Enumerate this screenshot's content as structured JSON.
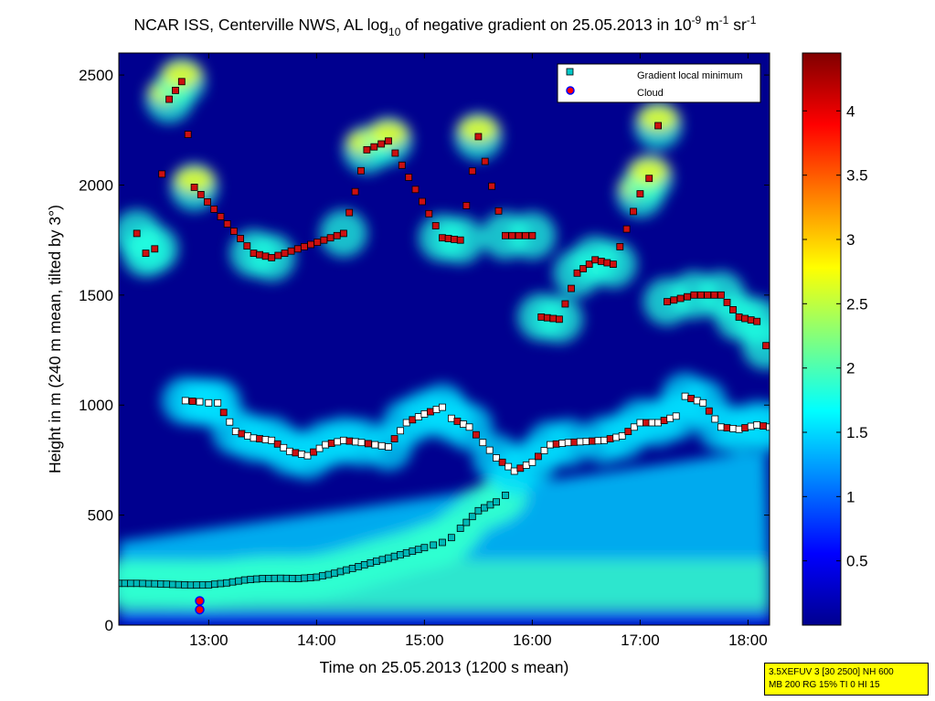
{
  "chart_data": {
    "type": "heatmap",
    "title_parts": [
      "NCAR ISS, Centerville NWS, AL log",
      "10",
      " of negative gradient on 25.05.2013 in 10",
      "-9",
      " m",
      "-1",
      " sr",
      "-1"
    ],
    "xlabel": "Time on 25.05.2013 (1200 s mean)",
    "ylabel": "Height in m (240 m mean, tilted by 3°)",
    "xlim": [
      "12:10",
      "18:12"
    ],
    "ylim": [
      0,
      2600
    ],
    "x_ticks": [
      "13:00",
      "14:00",
      "15:00",
      "16:00",
      "17:00",
      "18:00"
    ],
    "y_ticks": [
      0,
      500,
      1000,
      1500,
      2000,
      2500
    ],
    "colorbar": {
      "range": [
        0,
        4.45
      ],
      "ticks": [
        0.5,
        1,
        1.5,
        2,
        2.5,
        3,
        3.5,
        4
      ],
      "colormap": "jet"
    },
    "legend": {
      "placement": "top-right",
      "entries": [
        {
          "label": "Gradient local minimum",
          "marker": "square",
          "color": "#00c8c8"
        },
        {
          "label": "Cloud",
          "marker": "circle",
          "color": "#ff0000",
          "edge": "#0000ff"
        }
      ]
    },
    "colors": {
      "background_low": "#00008f",
      "gradient_marker_edge": "#000000",
      "cloud_marker_fill": "#cc1010"
    },
    "series": [
      {
        "name": "Gradient local minimum",
        "layer": "boundary",
        "points": [
          [
            "12:10",
            190
          ],
          [
            "12:20",
            190
          ],
          [
            "12:30",
            188
          ],
          [
            "12:40",
            185
          ],
          [
            "12:50",
            182
          ],
          [
            "13:00",
            183
          ],
          [
            "13:10",
            192
          ],
          [
            "13:20",
            205
          ],
          [
            "13:30",
            212
          ],
          [
            "13:40",
            213
          ],
          [
            "13:50",
            212
          ],
          [
            "14:00",
            218
          ],
          [
            "14:10",
            236
          ],
          [
            "14:20",
            258
          ],
          [
            "14:30",
            283
          ],
          [
            "14:40",
            305
          ],
          [
            "14:50",
            328
          ],
          [
            "15:00",
            352
          ],
          [
            "15:05",
            364
          ],
          [
            "15:10",
            376
          ],
          [
            "15:15",
            398
          ],
          [
            "15:20",
            440
          ],
          [
            "15:30",
            520
          ],
          [
            "15:40",
            560
          ],
          [
            "15:45",
            590
          ]
        ]
      },
      {
        "name": "Gradient local minimum",
        "layer": "layer-1000",
        "points": [
          [
            "12:47",
            1020
          ],
          [
            "12:55",
            1015
          ],
          [
            "13:00",
            1010
          ],
          [
            "13:05",
            1010
          ],
          [
            "13:15",
            880
          ],
          [
            "13:25",
            850
          ],
          [
            "13:35",
            840
          ],
          [
            "13:45",
            790
          ],
          [
            "13:55",
            770
          ],
          [
            "14:05",
            820
          ],
          [
            "14:15",
            840
          ],
          [
            "14:25",
            830
          ],
          [
            "14:40",
            810
          ],
          [
            "14:50",
            920
          ],
          [
            "15:00",
            960
          ],
          [
            "15:10",
            990
          ],
          [
            "15:15",
            940
          ],
          [
            "15:25",
            900
          ],
          [
            "15:40",
            760
          ],
          [
            "15:50",
            700
          ],
          [
            "16:00",
            740
          ],
          [
            "16:10",
            820
          ],
          [
            "16:20",
            830
          ],
          [
            "16:40",
            840
          ],
          [
            "16:50",
            860
          ],
          [
            "17:00",
            920
          ],
          [
            "17:10",
            920
          ],
          [
            "17:20",
            950
          ],
          [
            "17:25",
            1040
          ],
          [
            "17:35",
            1010
          ],
          [
            "17:45",
            900
          ],
          [
            "17:55",
            890
          ],
          [
            "18:05",
            910
          ],
          [
            "18:12",
            900
          ]
        ]
      },
      {
        "name": "Gradient local minimum",
        "layer": "layer-upper",
        "points": [
          [
            "12:20",
            1780
          ],
          [
            "12:25",
            1690
          ],
          [
            "12:30",
            1710
          ],
          [
            "12:38",
            2390
          ],
          [
            "12:45",
            2470
          ],
          [
            "12:52",
            1990
          ],
          [
            "13:25",
            1690
          ],
          [
            "13:35",
            1670
          ],
          [
            "14:15",
            1780
          ],
          [
            "14:28",
            2160
          ],
          [
            "14:40",
            2200
          ],
          [
            "15:10",
            1760
          ],
          [
            "15:20",
            1750
          ],
          [
            "15:30",
            2220
          ],
          [
            "15:45",
            1770
          ],
          [
            "16:00",
            1770
          ],
          [
            "16:05",
            1400
          ],
          [
            "16:15",
            1390
          ],
          [
            "16:25",
            1600
          ],
          [
            "16:35",
            1660
          ],
          [
            "16:45",
            1640
          ],
          [
            "17:00",
            1960
          ],
          [
            "17:05",
            2030
          ],
          [
            "17:10",
            2270
          ],
          [
            "17:15",
            1470
          ],
          [
            "17:30",
            1500
          ],
          [
            "17:45",
            1500
          ],
          [
            "17:55",
            1400
          ],
          [
            "18:05",
            1380
          ],
          [
            "18:10",
            1270
          ]
        ]
      },
      {
        "name": "Cloud",
        "points": [
          [
            "12:55",
            70
          ],
          [
            "12:55",
            110
          ]
        ]
      }
    ]
  },
  "info_box": {
    "line1": "3.5XEFUV 3 [30 2500] NH 600",
    "line2": "MB 200 RG 15% TI 0 HI 15"
  }
}
